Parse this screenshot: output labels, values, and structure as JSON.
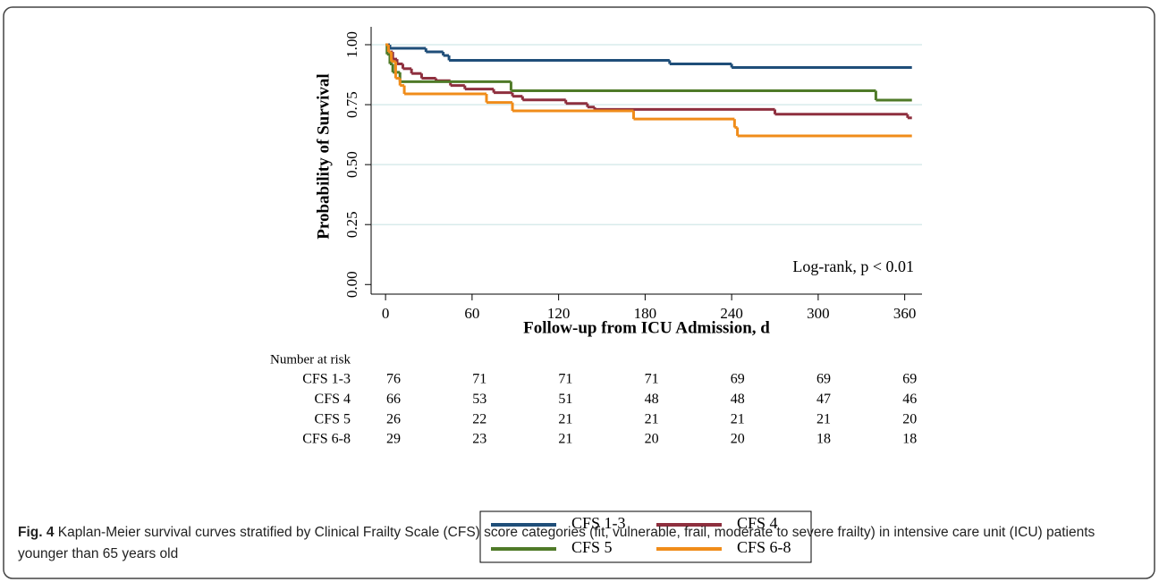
{
  "chart_data": {
    "type": "step",
    "y_label": "Probability of Survival",
    "x_label": "Follow-up from ICU Admission, d",
    "annotation": "Log-rank, p < 0.01",
    "xlim": [
      -10,
      372
    ],
    "ylim": [
      -0.04,
      1.0
    ],
    "xticks": [
      0,
      60,
      120,
      180,
      240,
      300,
      360
    ],
    "yticks": [
      {
        "value": 0,
        "label": "0.00"
      },
      {
        "value": 0.25,
        "label": "0.25"
      },
      {
        "value": 0.5,
        "label": "0.50"
      },
      {
        "value": 0.75,
        "label": "0.75"
      },
      {
        "value": 1,
        "label": "1.00"
      }
    ],
    "grid": true,
    "series": [
      {
        "name": "CFS 1-3",
        "color": "#1f4e79",
        "x": [
          0,
          3,
          28,
          40,
          44,
          197,
          240,
          365
        ],
        "values": [
          1,
          0.985,
          0.97,
          0.955,
          0.935,
          0.92,
          0.905,
          0.905
        ]
      },
      {
        "name": "CFS 4",
        "color": "#8e2f3e",
        "x": [
          0,
          2,
          5,
          8,
          12,
          18,
          25,
          35,
          45,
          55,
          75,
          88,
          95,
          125,
          140,
          145,
          270,
          362,
          365
        ],
        "values": [
          1,
          0.97,
          0.94,
          0.92,
          0.9,
          0.88,
          0.86,
          0.85,
          0.83,
          0.815,
          0.8,
          0.785,
          0.77,
          0.755,
          0.74,
          0.73,
          0.71,
          0.695,
          0.695
        ]
      },
      {
        "name": "CFS 5",
        "color": "#4f7a28",
        "x": [
          0,
          1,
          3,
          5,
          10,
          87,
          340,
          365
        ],
        "values": [
          1,
          0.96,
          0.92,
          0.885,
          0.846,
          0.808,
          0.769,
          0.769
        ]
      },
      {
        "name": "CFS 6-8",
        "color": "#f08c1a",
        "x": [
          0,
          2,
          4,
          7,
          10,
          13,
          70,
          88,
          172,
          242,
          244,
          365
        ],
        "values": [
          1,
          0.97,
          0.93,
          0.86,
          0.83,
          0.795,
          0.759,
          0.724,
          0.69,
          0.655,
          0.62,
          0.62
        ]
      }
    ],
    "risk_table": {
      "title": "Number at risk",
      "rows": [
        {
          "label": "CFS 1-3",
          "values": [
            76,
            71,
            71,
            71,
            69,
            69,
            69
          ]
        },
        {
          "label": "CFS 4",
          "values": [
            66,
            53,
            51,
            48,
            48,
            47,
            46
          ]
        },
        {
          "label": "CFS 5",
          "values": [
            26,
            22,
            21,
            21,
            21,
            21,
            20
          ]
        },
        {
          "label": "CFS 6-8",
          "values": [
            29,
            23,
            21,
            20,
            20,
            18,
            18
          ]
        }
      ]
    }
  },
  "caption": {
    "label": "Fig. 4",
    "text": "Kaplan-Meier survival curves stratified by Clinical Frailty Scale (CFS) score categories (fit, vulnerable, frail, moderate to severe frailty) in intensive care unit (ICU) patients younger than 65 years old"
  }
}
